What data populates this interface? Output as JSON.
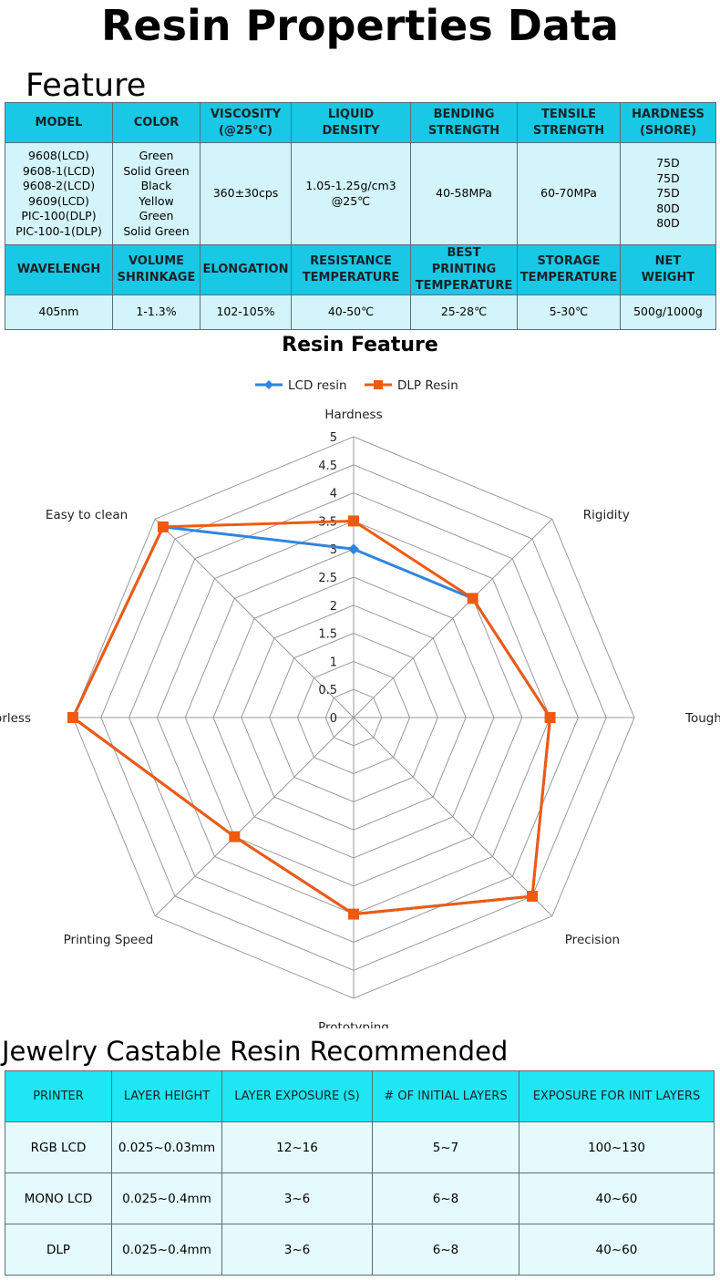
{
  "page_title": "Resin Properties Data",
  "feature_heading": "Feature",
  "feature_table": {
    "header1": [
      "MODEL",
      "COLOR",
      "VISCOSITY\n(@25°C)",
      "LIQUID\nDENSITY",
      "BENDING\nSTRENGTH",
      "TENSILE\nSTRENGTH",
      "HARDNESS\n(SHORE)"
    ],
    "values1": [
      "9608(LCD)\n9608-1(LCD)\n9608-2(LCD)\n9609(LCD)\nPIC-100(DLP)\nPIC-100-1(DLP)",
      "Green\nSolid Green\nBlack\nYellow\nGreen\nSolid Green",
      "360±30cps",
      "1.05-1.25g/cm3\n@25℃",
      "40-58MPa",
      "60-70MPa",
      "75D\n75D\n75D\n80D\n80D"
    ],
    "header2": [
      "WAVELENGH",
      "VOLUME\nSHRINKAGE",
      "ELONGATION",
      "RESISTANCE\nTEMPERATURE",
      "BEST PRINTING\nTEMPERATURE",
      "STORAGE\nTEMPERATURE",
      "NET\nWEIGHT"
    ],
    "values2": [
      "405nm",
      "1-1.3%",
      "102-105%",
      "40-50℃",
      "25-28℃",
      "5-30℃",
      "500g/1000g"
    ]
  },
  "chart_data": {
    "type": "radar",
    "title": "Resin Feature",
    "axes": [
      "Hardness",
      "Rigidity",
      "Toughness",
      "Precision",
      "Prototyping",
      "Printing Speed",
      "Odorless",
      "Easy to clean"
    ],
    "rlim": [
      0,
      5
    ],
    "ticks": [
      "0",
      "0.5",
      "1",
      "1.5",
      "2",
      "2.5",
      "3",
      "3.5",
      "4",
      "4.5",
      "5"
    ],
    "legend_position": "top-center",
    "series": [
      {
        "name": "LCD resin",
        "color": "#2e86de",
        "marker": "diamond",
        "values": [
          3,
          3,
          3.5,
          4.5,
          3.5,
          3,
          5,
          4.8
        ]
      },
      {
        "name": "DLP Resin",
        "color": "#f05a10",
        "marker": "square",
        "values": [
          3.5,
          3,
          3.5,
          4.5,
          3.5,
          3,
          5,
          4.8
        ]
      }
    ]
  },
  "jewelry_heading": "Jewelry Castable Resin Recommended",
  "jewelry_table": {
    "header": [
      "PRINTER",
      "LAYER HEIGHT",
      "LAYER EXPOSURE (S)",
      "# OF INITIAL LAYERS",
      "EXPOSURE FOR INIT LAYERS"
    ],
    "rows": [
      [
        "RGB LCD",
        "0.025~0.03mm",
        "12~16",
        "5~7",
        "100~130"
      ],
      [
        "MONO LCD",
        "0.025~0.4mm",
        "3~6",
        "6~8",
        "40~60"
      ],
      [
        "DLP",
        "0.025~0.4mm",
        "3~6",
        "6~8",
        "40~60"
      ]
    ]
  }
}
